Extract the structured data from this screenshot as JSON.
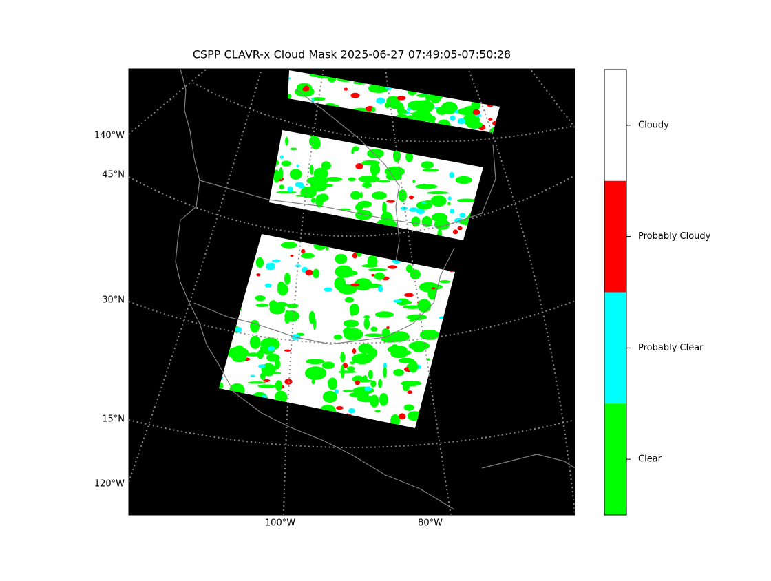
{
  "title": "CSPP CLAVR-x Cloud Mask 2025-06-27 07:49:05-07:50:28",
  "map": {
    "background": "#000000",
    "labels": [
      "140°W",
      "45°N",
      "30°N",
      "15°N",
      "120°W",
      "100°W",
      "80°W"
    ]
  },
  "colorbar": {
    "classes": [
      {
        "name": "Cloudy",
        "color": "#ffffff"
      },
      {
        "name": "Probably Cloudy",
        "color": "#ff0000"
      },
      {
        "name": "Probably Clear",
        "color": "#00ffff"
      },
      {
        "name": "Clear",
        "color": "#00ff00"
      }
    ]
  }
}
